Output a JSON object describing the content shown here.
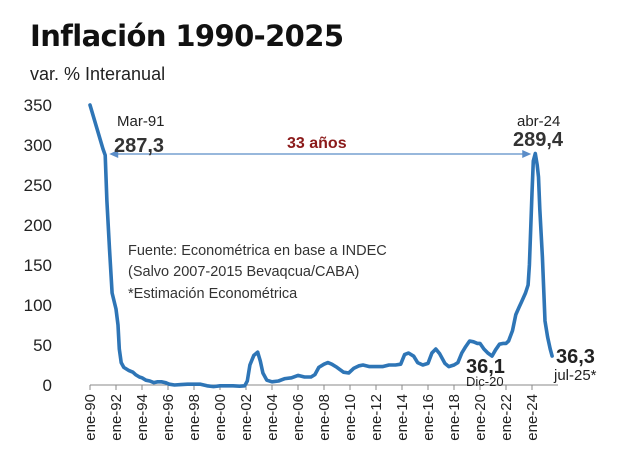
{
  "chart_data": {
    "type": "line",
    "title": "Inflación 1990-2025",
    "ylabel": "var. % Interanual",
    "ylim": [
      0,
      350
    ],
    "yticks": [
      "0",
      "50",
      "100",
      "150",
      "200",
      "250",
      "300",
      "350"
    ],
    "xlim": [
      1990.0,
      2026.0
    ],
    "xticks": [
      "ene-90",
      "ene-92",
      "ene-94",
      "ene-96",
      "ene-98",
      "ene-00",
      "ene-02",
      "ene-04",
      "ene-06",
      "ene-08",
      "ene-10",
      "ene-12",
      "ene-14",
      "ene-16",
      "ene-18",
      "ene-20",
      "ene-22",
      "ene-24"
    ],
    "series": [
      {
        "name": "Inflación var. % interanual",
        "color": "#2e75b6",
        "points": [
          [
            1990.0,
            350
          ],
          [
            1991.0,
            295
          ],
          [
            1991.17,
            287.3
          ],
          [
            1991.3,
            230
          ],
          [
            1991.5,
            170
          ],
          [
            1991.7,
            115
          ],
          [
            1992.0,
            95
          ],
          [
            1992.15,
            75
          ],
          [
            1992.25,
            45
          ],
          [
            1992.4,
            28
          ],
          [
            1992.6,
            22
          ],
          [
            1992.8,
            20
          ],
          [
            1993.0,
            18
          ],
          [
            1993.3,
            16
          ],
          [
            1993.5,
            13
          ],
          [
            1993.8,
            10
          ],
          [
            1994.0,
            9
          ],
          [
            1994.3,
            6
          ],
          [
            1994.6,
            5
          ],
          [
            1994.9,
            3
          ],
          [
            1995.2,
            4
          ],
          [
            1995.5,
            4
          ],
          [
            1995.8,
            3
          ],
          [
            1996.1,
            1
          ],
          [
            1996.5,
            0
          ],
          [
            1997.0,
            0.5
          ],
          [
            1997.5,
            1
          ],
          [
            1998.0,
            1
          ],
          [
            1998.5,
            1
          ],
          [
            1999.0,
            -1
          ],
          [
            1999.5,
            -2
          ],
          [
            2000.0,
            -1
          ],
          [
            2000.5,
            -1
          ],
          [
            2001.0,
            -1
          ],
          [
            2001.5,
            -1.5
          ],
          [
            2001.9,
            -1
          ],
          [
            2002.1,
            5
          ],
          [
            2002.3,
            25
          ],
          [
            2002.6,
            37
          ],
          [
            2002.9,
            41
          ],
          [
            2003.1,
            30
          ],
          [
            2003.3,
            15
          ],
          [
            2003.6,
            6
          ],
          [
            2004.0,
            4
          ],
          [
            2004.5,
            5
          ],
          [
            2005.0,
            8
          ],
          [
            2005.5,
            9
          ],
          [
            2006.0,
            12
          ],
          [
            2006.5,
            10
          ],
          [
            2007.0,
            10
          ],
          [
            2007.3,
            13
          ],
          [
            2007.6,
            22
          ],
          [
            2008.0,
            26
          ],
          [
            2008.3,
            28
          ],
          [
            2008.6,
            26
          ],
          [
            2009.0,
            22
          ],
          [
            2009.5,
            16
          ],
          [
            2009.9,
            15
          ],
          [
            2010.3,
            21
          ],
          [
            2010.7,
            24
          ],
          [
            2011.0,
            25
          ],
          [
            2011.5,
            23
          ],
          [
            2012.0,
            23
          ],
          [
            2012.5,
            23
          ],
          [
            2013.0,
            25
          ],
          [
            2013.5,
            25
          ],
          [
            2013.9,
            26
          ],
          [
            2014.2,
            38
          ],
          [
            2014.5,
            40
          ],
          [
            2014.9,
            36
          ],
          [
            2015.2,
            28
          ],
          [
            2015.6,
            25
          ],
          [
            2016.0,
            27
          ],
          [
            2016.3,
            40
          ],
          [
            2016.6,
            45
          ],
          [
            2016.9,
            39
          ],
          [
            2017.3,
            27
          ],
          [
            2017.6,
            23
          ],
          [
            2018.0,
            25
          ],
          [
            2018.3,
            28
          ],
          [
            2018.6,
            40
          ],
          [
            2018.9,
            48
          ],
          [
            2019.2,
            55
          ],
          [
            2019.5,
            54
          ],
          [
            2019.8,
            52
          ],
          [
            2020.0,
            52
          ],
          [
            2020.3,
            45
          ],
          [
            2020.6,
            40
          ],
          [
            2020.92,
            36.1
          ],
          [
            2021.2,
            44
          ],
          [
            2021.5,
            51
          ],
          [
            2021.8,
            52
          ],
          [
            2022.0,
            52
          ],
          [
            2022.2,
            55
          ],
          [
            2022.5,
            68
          ],
          [
            2022.75,
            88
          ],
          [
            2023.0,
            97
          ],
          [
            2023.2,
            104
          ],
          [
            2023.5,
            115
          ],
          [
            2023.7,
            125
          ],
          [
            2023.8,
            150
          ],
          [
            2024.0,
            240
          ],
          [
            2024.1,
            280
          ],
          [
            2024.25,
            289.4
          ],
          [
            2024.4,
            275
          ],
          [
            2024.5,
            260
          ],
          [
            2024.6,
            220
          ],
          [
            2024.7,
            190
          ],
          [
            2024.8,
            160
          ],
          [
            2024.9,
            120
          ],
          [
            2025.0,
            80
          ],
          [
            2025.2,
            60
          ],
          [
            2025.4,
            45
          ],
          [
            2025.55,
            36.3
          ]
        ]
      }
    ],
    "annotations": {
      "mar91_label": "Mar-91",
      "mar91_value": "287,3",
      "apr24_label": "abr-24",
      "apr24_value": "289,4",
      "span_label": "33 años",
      "dec20_value": "36,1",
      "dec20_label": "Dic-20",
      "jul25_value": "36,3",
      "jul25_label": "jul-25*"
    },
    "source": [
      "Fuente: Econométrica en base a INDEC",
      "(Salvo 2007-2015 Bevaqcua/CABA)",
      "*Estimación Econométrica"
    ],
    "grid": false
  }
}
